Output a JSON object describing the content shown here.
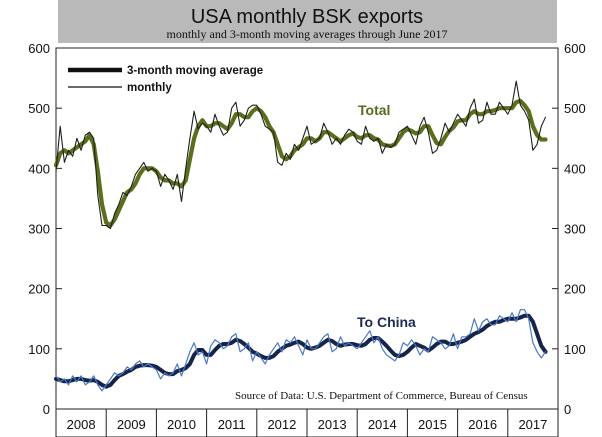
{
  "chart_data": {
    "type": "line",
    "title": "USA monthly BSK exports",
    "subtitle": "monthly and 3-month moving averages through June 2017",
    "source_note": "Source of Data: U.S. Department of Commerce, Bureau of Census",
    "xlabel": "",
    "ylabel": "",
    "ylim": [
      0,
      600
    ],
    "y_ticks": [
      0,
      100,
      200,
      300,
      400,
      500,
      600
    ],
    "x_tick_labels": [
      "2008",
      "2009",
      "2010",
      "2011",
      "2012",
      "2013",
      "2014",
      "2015",
      "2016",
      "2017"
    ],
    "legend": {
      "position": "top-left",
      "entries": [
        "3-month moving average",
        "monthly"
      ]
    },
    "series_labels": [
      {
        "text": "Total",
        "color": "#556b1d"
      },
      {
        "text": "To China",
        "color": "#1a2b55"
      }
    ],
    "x_start": "2008-01",
    "x_end": "2017-06",
    "colors": {
      "total_avg": "#5a6e1c",
      "total_monthly": "#1e1e1e",
      "china_avg": "#16244a",
      "china_monthly": "#4a78c8",
      "title_bar": "#b9b9b9"
    },
    "series": [
      {
        "name": "Total monthly",
        "style": "thin",
        "values": [
          395,
          470,
          410,
          430,
          420,
          450,
          430,
          455,
          460,
          450,
          355,
          305,
          305,
          300,
          325,
          340,
          360,
          355,
          370,
          390,
          400,
          410,
          395,
          400,
          395,
          370,
          390,
          380,
          365,
          390,
          345,
          400,
          450,
          495,
          465,
          475,
          470,
          460,
          490,
          470,
          455,
          460,
          500,
          510,
          470,
          480,
          500,
          505,
          505,
          490,
          470,
          465,
          460,
          410,
          405,
          425,
          415,
          440,
          430,
          450,
          470,
          440,
          445,
          450,
          475,
          460,
          440,
          450,
          440,
          455,
          465,
          460,
          445,
          440,
          470,
          450,
          445,
          450,
          425,
          440,
          435,
          440,
          460,
          465,
          470,
          455,
          440,
          470,
          485,
          460,
          425,
          430,
          450,
          475,
          460,
          475,
          490,
          480,
          470,
          500,
          515,
          475,
          480,
          510,
          490,
          490,
          510,
          500,
          490,
          505,
          545,
          505,
          495,
          480,
          430,
          440,
          470,
          485
        ]
      },
      {
        "name": "Total 3-month moving average",
        "style": "thick",
        "values": [
          405,
          425,
          430,
          425,
          430,
          435,
          440,
          445,
          455,
          440,
          395,
          340,
          310,
          305,
          315,
          330,
          345,
          360,
          365,
          375,
          390,
          400,
          400,
          400,
          395,
          385,
          380,
          380,
          375,
          375,
          370,
          380,
          415,
          450,
          470,
          480,
          470,
          470,
          475,
          475,
          470,
          465,
          475,
          490,
          490,
          485,
          485,
          495,
          500,
          495,
          485,
          470,
          460,
          440,
          420,
          415,
          420,
          430,
          435,
          440,
          450,
          450,
          445,
          450,
          460,
          460,
          455,
          450,
          445,
          450,
          455,
          458,
          452,
          450,
          455,
          455,
          450,
          448,
          440,
          438,
          437,
          440,
          450,
          460,
          465,
          462,
          458,
          460,
          470,
          470,
          455,
          442,
          440,
          452,
          462,
          468,
          478,
          480,
          480,
          490,
          495,
          490,
          490,
          495,
          495,
          497,
          500,
          500,
          500,
          500,
          510,
          512,
          505,
          495,
          470,
          455,
          448,
          448
        ]
      },
      {
        "name": "To China monthly",
        "style": "thin",
        "values": [
          55,
          45,
          50,
          40,
          55,
          45,
          55,
          40,
          45,
          55,
          40,
          30,
          40,
          50,
          60,
          55,
          60,
          70,
          65,
          75,
          80,
          70,
          75,
          70,
          65,
          50,
          60,
          55,
          60,
          75,
          55,
          75,
          95,
          110,
          90,
          95,
          75,
          105,
          115,
          110,
          100,
          105,
          120,
          125,
          95,
          100,
          110,
          80,
          95,
          85,
          75,
          90,
          100,
          110,
          95,
          115,
          110,
          120,
          105,
          90,
          115,
          100,
          100,
          110,
          120,
          125,
          95,
          100,
          120,
          105,
          110,
          105,
          100,
          110,
          120,
          130,
          110,
          120,
          100,
          90,
          85,
          80,
          90,
          110,
          105,
          115,
          105,
          90,
          100,
          95,
          120,
          115,
          110,
          100,
          105,
          125,
          100,
          120,
          120,
          125,
          150,
          130,
          145,
          150,
          140,
          140,
          155,
          150,
          145,
          160,
          145,
          165,
          165,
          150,
          110,
          95,
          85,
          95
        ]
      },
      {
        "name": "To China 3-month moving average",
        "style": "thick",
        "values": [
          50,
          48,
          46,
          46,
          48,
          50,
          50,
          48,
          47,
          48,
          45,
          40,
          37,
          40,
          48,
          55,
          58,
          62,
          65,
          70,
          72,
          73,
          73,
          72,
          70,
          65,
          60,
          58,
          58,
          63,
          65,
          68,
          75,
          90,
          98,
          98,
          90,
          90,
          98,
          105,
          108,
          108,
          110,
          115,
          113,
          108,
          102,
          95,
          92,
          88,
          85,
          85,
          88,
          95,
          100,
          105,
          107,
          110,
          112,
          108,
          102,
          100,
          102,
          105,
          110,
          115,
          113,
          108,
          105,
          107,
          108,
          108,
          106,
          105,
          108,
          115,
          118,
          118,
          112,
          105,
          97,
          90,
          88,
          90,
          95,
          102,
          108,
          105,
          102,
          97,
          102,
          108,
          112,
          112,
          108,
          108,
          110,
          112,
          115,
          120,
          125,
          128,
          132,
          138,
          142,
          145,
          145,
          148,
          150,
          150,
          150,
          152,
          155,
          155,
          145,
          125,
          105,
          95
        ]
      }
    ]
  }
}
